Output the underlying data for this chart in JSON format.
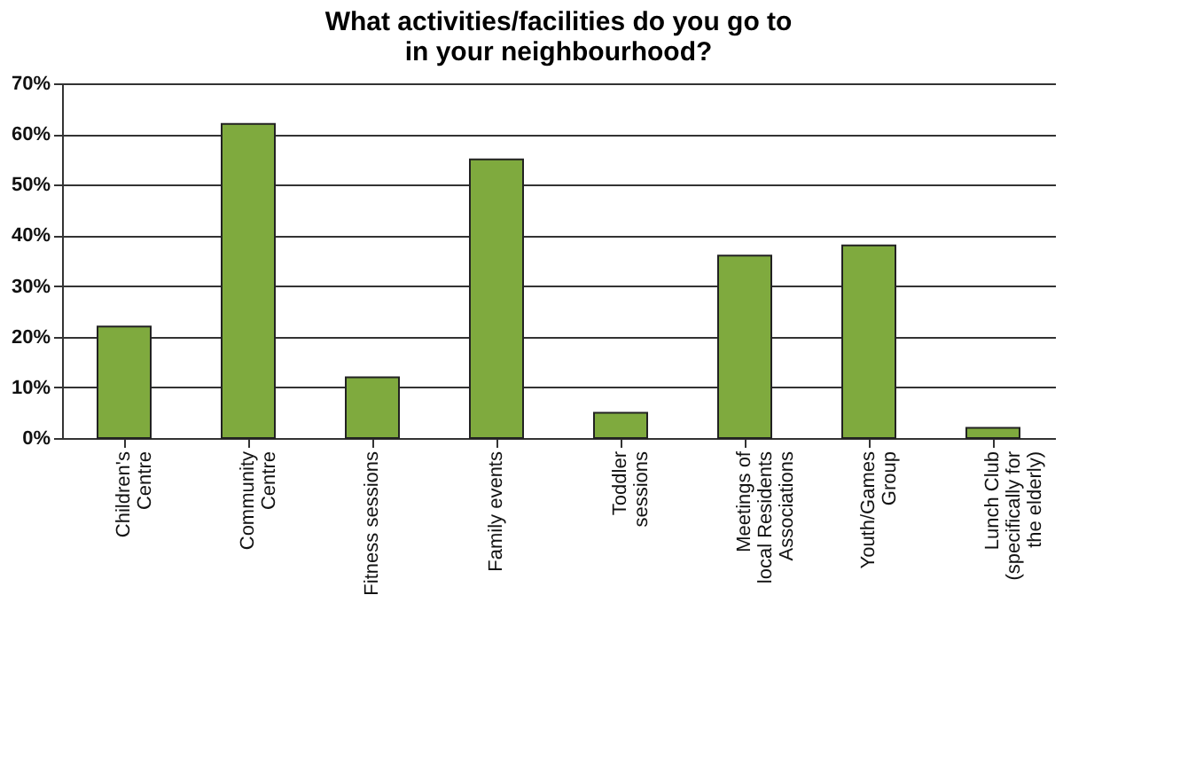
{
  "chart_data": {
    "type": "bar",
    "title": "What activities/facilities do you go to\nin your neighbourhood?",
    "categories": [
      "Children's\nCentre",
      "Community\nCentre",
      "Fitness sessions",
      "Family events",
      "Toddler\nsessions",
      "Meetings of\nlocal Residents\nAssociations",
      "Youth/Games\nGroup",
      "Lunch Club\n(specifically for\nthe elderly)"
    ],
    "values": [
      22,
      62,
      12,
      55,
      5,
      36,
      38,
      2
    ],
    "color": "#7faa3e",
    "ylim": [
      0,
      70
    ],
    "yticks": [
      {
        "value": 0,
        "label": "0%"
      },
      {
        "value": 10,
        "label": "10%"
      },
      {
        "value": 20,
        "label": "20%"
      },
      {
        "value": 30,
        "label": "30%"
      },
      {
        "value": 40,
        "label": "40%"
      },
      {
        "value": 50,
        "label": "50%"
      },
      {
        "value": 60,
        "label": "60%"
      },
      {
        "value": 70,
        "label": "70%"
      }
    ],
    "grid": "y"
  }
}
